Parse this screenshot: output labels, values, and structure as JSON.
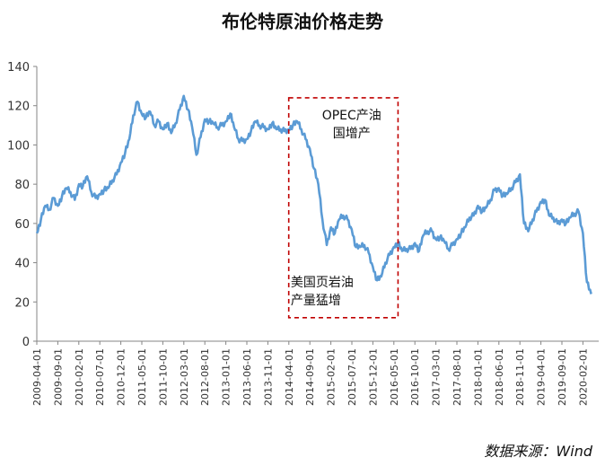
{
  "chart_data": {
    "type": "line",
    "title": "布伦特原油价格走势",
    "source": "数据来源：Wind",
    "ylim": [
      0,
      140
    ],
    "y_ticks": [
      0,
      20,
      40,
      60,
      80,
      100,
      120,
      140
    ],
    "x_ticks": [
      "2009-04-01",
      "2009-09-01",
      "2010-02-01",
      "2010-07-01",
      "2010-12-01",
      "2011-05-01",
      "2011-10-01",
      "2012-03-01",
      "2012-08-01",
      "2013-01-01",
      "2013-06-01",
      "2013-11-01",
      "2014-04-01",
      "2014-09-01",
      "2015-02-01",
      "2015-07-01",
      "2015-12-01",
      "2016-05-01",
      "2016-10-01",
      "2017-03-01",
      "2017-08-01",
      "2018-01-01",
      "2018-06-01",
      "2018-11-01",
      "2019-04-01",
      "2019-09-01",
      "2020-02-01"
    ],
    "grid": false,
    "line_color": "#5b9bd5",
    "highlight_box": {
      "x_start": "2014-04-01",
      "x_end": "2016-06-01",
      "y_top": 124,
      "y_bottom": 12,
      "color": "#c00000"
    },
    "annotations": [
      {
        "text_lines": [
          "OPEC产油",
          "国增产"
        ],
        "x": "2015-07-01",
        "y": 113
      },
      {
        "text_lines": [
          "美国页岩油",
          "产量猛增"
        ],
        "x": "2014-04-15",
        "y": 28
      }
    ],
    "series": [
      {
        "x": [
          "2009-04-01",
          "2009-05-01",
          "2009-06-01",
          "2009-07-01",
          "2009-08-01",
          "2009-09-01",
          "2009-10-01",
          "2009-11-01",
          "2009-12-01",
          "2010-01-01",
          "2010-02-01",
          "2010-03-01",
          "2010-04-01",
          "2010-05-01",
          "2010-06-01",
          "2010-07-01",
          "2010-08-01",
          "2010-09-01",
          "2010-10-01",
          "2010-11-01",
          "2010-12-01",
          "2011-01-01",
          "2011-02-01",
          "2011-03-01",
          "2011-04-01",
          "2011-05-01",
          "2011-06-01",
          "2011-07-01",
          "2011-08-01",
          "2011-09-01",
          "2011-10-01",
          "2011-11-01",
          "2011-12-01",
          "2012-01-01",
          "2012-02-01",
          "2012-03-01",
          "2012-04-01",
          "2012-05-01",
          "2012-06-01",
          "2012-07-01",
          "2012-08-01",
          "2012-09-01",
          "2012-10-01",
          "2012-11-01",
          "2012-12-01",
          "2013-01-01",
          "2013-02-01",
          "2013-03-01",
          "2013-04-01",
          "2013-05-01",
          "2013-06-01",
          "2013-07-01",
          "2013-08-01",
          "2013-09-01",
          "2013-10-01",
          "2013-11-01",
          "2013-12-01",
          "2014-01-01",
          "2014-02-01",
          "2014-03-01",
          "2014-04-01",
          "2014-05-01",
          "2014-06-01",
          "2014-07-01",
          "2014-08-01",
          "2014-09-01",
          "2014-10-01",
          "2014-11-01",
          "2014-12-01",
          "2015-01-01",
          "2015-02-01",
          "2015-03-01",
          "2015-04-01",
          "2015-05-01",
          "2015-06-01",
          "2015-07-01",
          "2015-08-01",
          "2015-09-01",
          "2015-10-01",
          "2015-11-01",
          "2015-12-01",
          "2016-01-01",
          "2016-02-01",
          "2016-03-01",
          "2016-04-01",
          "2016-05-01",
          "2016-06-01",
          "2016-07-01",
          "2016-08-01",
          "2016-09-01",
          "2016-10-01",
          "2016-11-01",
          "2016-12-01",
          "2017-01-01",
          "2017-02-01",
          "2017-03-01",
          "2017-04-01",
          "2017-05-01",
          "2017-06-01",
          "2017-07-01",
          "2017-08-01",
          "2017-09-01",
          "2017-10-01",
          "2017-11-01",
          "2017-12-01",
          "2018-01-01",
          "2018-02-01",
          "2018-03-01",
          "2018-04-01",
          "2018-05-01",
          "2018-06-01",
          "2018-07-01",
          "2018-08-01",
          "2018-09-01",
          "2018-10-01",
          "2018-11-01",
          "2018-12-01",
          "2019-01-01",
          "2019-02-01",
          "2019-03-01",
          "2019-04-01",
          "2019-05-01",
          "2019-06-01",
          "2019-07-01",
          "2019-08-01",
          "2019-09-01",
          "2019-10-01",
          "2019-11-01",
          "2019-12-01",
          "2020-01-01",
          "2020-02-01",
          "2020-03-01",
          "2020-04-01"
        ],
        "values": [
          55,
          62,
          69,
          67,
          73,
          69,
          74,
          78,
          76,
          72,
          80,
          79,
          84,
          76,
          73,
          75,
          77,
          78,
          82,
          85,
          91,
          96,
          103,
          115,
          122,
          116,
          114,
          117,
          110,
          112,
          108,
          111,
          106,
          111,
          118,
          125,
          118,
          109,
          95,
          104,
          113,
          112,
          111,
          109,
          110,
          112,
          116,
          109,
          103,
          102,
          103,
          107,
          112,
          110,
          109,
          108,
          111,
          108,
          108,
          107,
          108,
          110,
          112,
          108,
          103,
          98,
          88,
          80,
          62,
          49,
          58,
          55,
          62,
          64,
          62,
          57,
          48,
          48,
          49,
          45,
          38,
          31,
          33,
          40,
          44,
          48,
          50,
          46,
          47,
          47,
          50,
          46,
          54,
          56,
          56,
          52,
          53,
          51,
          47,
          49,
          52,
          55,
          58,
          63,
          64,
          69,
          66,
          68,
          72,
          77,
          78,
          74,
          75,
          78,
          81,
          85,
          60,
          56,
          62,
          66,
          71,
          72,
          64,
          63,
          60,
          62,
          60,
          63,
          65,
          66,
          55,
          30,
          24
        ]
      }
    ]
  }
}
